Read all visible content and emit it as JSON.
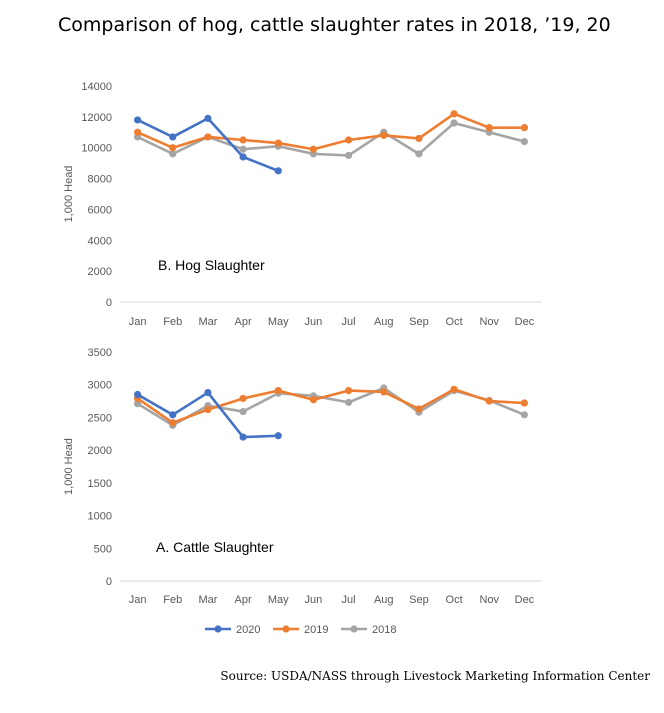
{
  "title": "Comparison of hog, cattle slaughter rates in 2018, ’19, 20",
  "source": "Source: USDA/NASS through Livestock Marketing Information Center",
  "colors": {
    "2020": "#4472C4",
    "2019": "#ED7D31",
    "2018": "#A5A5A5",
    "axis": "#D9D9D9"
  },
  "legend": {
    "placement": "bottom"
  },
  "chart_data": [
    {
      "type": "line",
      "annotation": "B.   Hog Slaughter",
      "ylabel": "1,000 Head",
      "xlabel": "",
      "ylim": [
        0,
        14000
      ],
      "yticks": [
        0,
        2000,
        4000,
        6000,
        8000,
        10000,
        12000,
        14000
      ],
      "ytick_labels": [
        "0",
        "2000",
        "4000",
        "6000",
        "8000",
        "10000",
        "12000",
        "14000"
      ],
      "grid": false,
      "categories": [
        "Jan",
        "Feb",
        "Mar",
        "Apr",
        "May",
        "Jun",
        "Jul",
        "Aug",
        "Sep",
        "Oct",
        "Nov",
        "Dec"
      ],
      "series": [
        {
          "name": "2020",
          "values": [
            11800,
            10700,
            11900,
            9400,
            8500,
            null,
            null,
            null,
            null,
            null,
            null,
            null
          ]
        },
        {
          "name": "2019",
          "values": [
            11000,
            10000,
            10700,
            10500,
            10300,
            9900,
            10500,
            10800,
            10600,
            12200,
            11300,
            11300
          ]
        },
        {
          "name": "2018",
          "values": [
            10700,
            9600,
            10700,
            9900,
            10100,
            9600,
            9500,
            11000,
            9600,
            11600,
            11000,
            10400
          ]
        }
      ]
    },
    {
      "type": "line",
      "annotation": "A.   Cattle Slaughter",
      "ylabel": "1,000 Head",
      "xlabel": "",
      "ylim": [
        0,
        3500
      ],
      "yticks": [
        0,
        500,
        1000,
        1500,
        2000,
        2500,
        3000,
        3500
      ],
      "ytick_labels": [
        "0",
        "500",
        "1000",
        "1500",
        "2000",
        "2500",
        "3000",
        "3500"
      ],
      "grid": false,
      "categories": [
        "Jan",
        "Feb",
        "Mar",
        "Apr",
        "May",
        "Jun",
        "Jul",
        "Aug",
        "Sep",
        "Oct",
        "Nov",
        "Dec"
      ],
      "series": [
        {
          "name": "2020",
          "values": [
            2850,
            2540,
            2880,
            2200,
            2220,
            null,
            null,
            null,
            null,
            null,
            null,
            null
          ]
        },
        {
          "name": "2019",
          "values": [
            2790,
            2420,
            2620,
            2790,
            2910,
            2770,
            2910,
            2890,
            2630,
            2930,
            2750,
            2720
          ]
        },
        {
          "name": "2018",
          "values": [
            2710,
            2380,
            2680,
            2590,
            2870,
            2830,
            2730,
            2950,
            2580,
            2910,
            2760,
            2540
          ]
        }
      ]
    }
  ]
}
